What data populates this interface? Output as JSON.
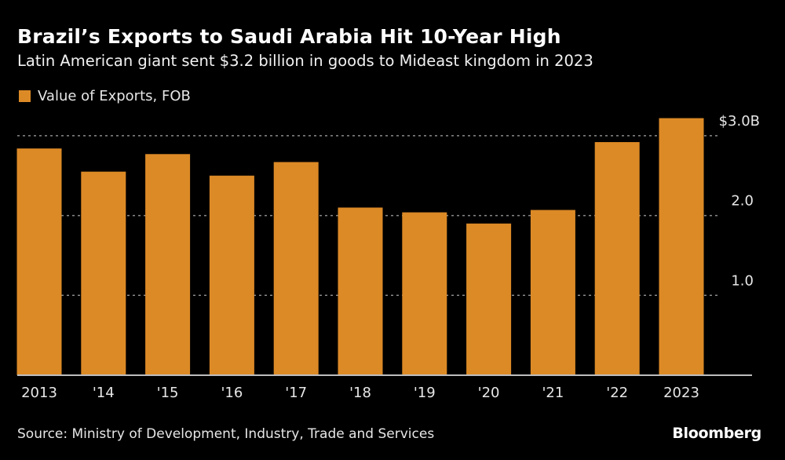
{
  "header": {
    "title": "Brazil’s Exports to Saudi Arabia Hit 10-Year High",
    "subtitle": "Latin American giant sent $3.2 billion in goods to Mideast kingdom in 2023"
  },
  "footer": {
    "source": "Source: Ministry of Development, Industry, Trade and Services",
    "brand": "Bloomberg"
  },
  "colors": {
    "background": "#000000",
    "bar": "#dc8a26",
    "grid": "#8a8a8a",
    "axis": "#bdbdbd",
    "text": "#e6e6e6"
  },
  "chart_data": {
    "type": "bar",
    "title": "Brazil’s Exports to Saudi Arabia Hit 10-Year High",
    "subtitle": "Latin American giant sent $3.2 billion in goods to Mideast kingdom in 2023",
    "xlabel": "",
    "ylabel": "",
    "categories": [
      "2013",
      "'14",
      "'15",
      "'16",
      "'17",
      "'18",
      "'19",
      "'20",
      "'21",
      "'22",
      "2023"
    ],
    "series": [
      {
        "name": "Value of Exports, FOB",
        "color": "#dc8a26",
        "values": [
          2.84,
          2.55,
          2.77,
          2.5,
          2.67,
          2.1,
          2.04,
          1.9,
          2.07,
          2.92,
          3.22
        ]
      }
    ],
    "ylim": [
      0,
      3.0
    ],
    "y_ticks": [
      {
        "value": 1.0,
        "label": "1.0"
      },
      {
        "value": 2.0,
        "label": "2.0"
      },
      {
        "value": 3.0,
        "label": "$3.0B"
      }
    ],
    "grid": true,
    "grid_style": "dotted",
    "y_axis_position": "right",
    "legend": {
      "position": "top-left",
      "entries": [
        "Value of Exports, FOB"
      ]
    },
    "units": "billions USD"
  }
}
